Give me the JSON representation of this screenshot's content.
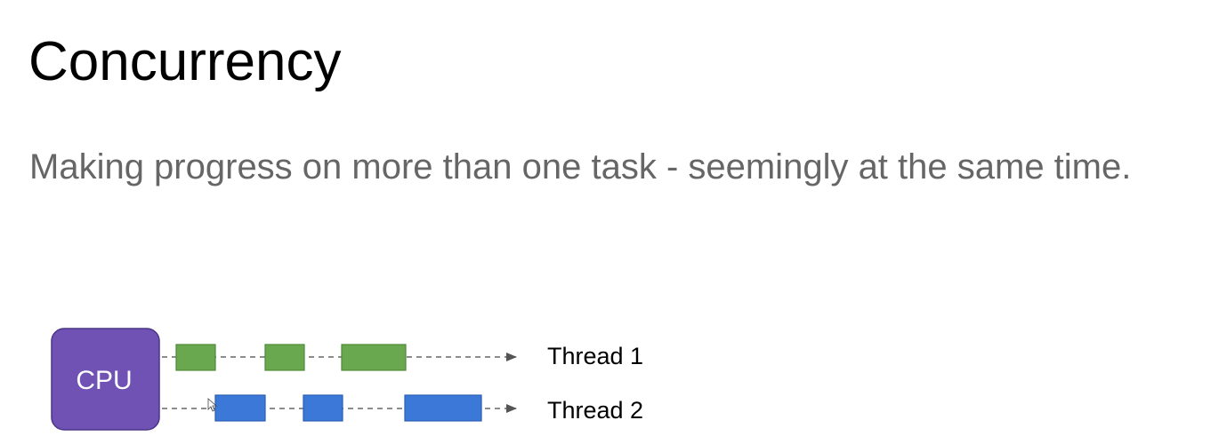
{
  "slide": {
    "title": "Concurrency",
    "subtitle": "Making progress on more than one task - seemingly at the same time."
  },
  "diagram": {
    "cpu_label": "CPU",
    "cpu_color": "#7052b4",
    "threads": [
      {
        "label": "Thread 1",
        "color": "#6aa84f",
        "border": "#4e8a36"
      },
      {
        "label": "Thread 2",
        "color": "#3c78d8",
        "border": "#2a5fb5"
      }
    ],
    "dash_color": "#666666"
  }
}
